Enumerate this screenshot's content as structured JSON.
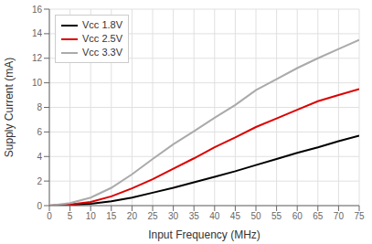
{
  "chart_data": {
    "type": "line",
    "xlabel": "Input Frequency (MHz)",
    "ylabel": "Supply Current (mA)",
    "x": [
      0,
      5,
      10,
      15,
      20,
      25,
      30,
      35,
      40,
      45,
      50,
      55,
      60,
      65,
      70,
      75
    ],
    "series": [
      {
        "name": "Vcc 1.8V",
        "color": "#000000",
        "values": [
          0,
          0.05,
          0.15,
          0.35,
          0.65,
          1.05,
          1.45,
          1.9,
          2.35,
          2.8,
          3.3,
          3.8,
          4.3,
          4.75,
          5.25,
          5.7
        ]
      },
      {
        "name": "Vcc 2.5V",
        "color": "#dd0000",
        "values": [
          0,
          0.1,
          0.3,
          0.75,
          1.4,
          2.15,
          3.0,
          3.85,
          4.75,
          5.55,
          6.4,
          7.1,
          7.8,
          8.5,
          9.0,
          9.5
        ]
      },
      {
        "name": "Vcc 3.3V",
        "color": "#aaaaaa",
        "values": [
          0,
          0.2,
          0.65,
          1.45,
          2.55,
          3.8,
          5.0,
          6.05,
          7.15,
          8.2,
          9.4,
          10.3,
          11.2,
          12.0,
          12.75,
          13.5
        ]
      }
    ],
    "xlim": [
      0,
      75
    ],
    "ylim": [
      0,
      16
    ],
    "xticks": [
      0,
      5,
      10,
      15,
      20,
      25,
      30,
      35,
      40,
      45,
      50,
      55,
      60,
      65,
      70,
      75
    ],
    "yticks": [
      0,
      2,
      4,
      6,
      8,
      10,
      12,
      14,
      16
    ],
    "grid": true,
    "legend": "upper left"
  }
}
